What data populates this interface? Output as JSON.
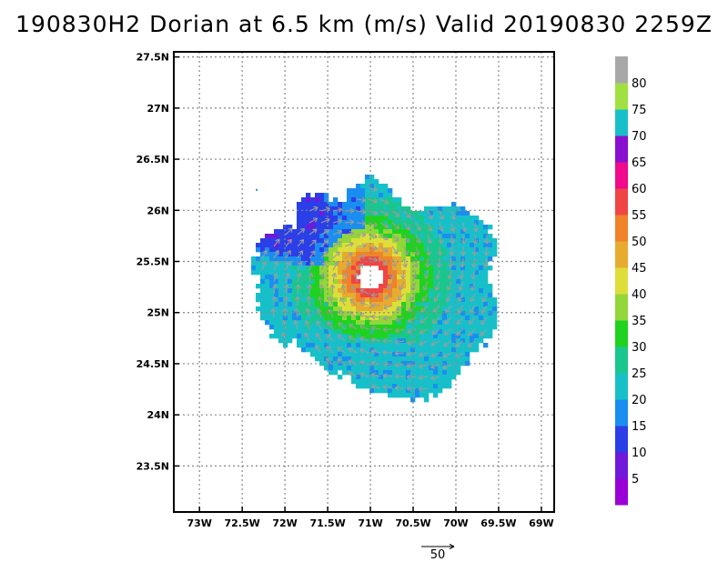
{
  "title": "190830H2 Dorian at 6.5 km (m/s) Valid 20190830  2259Z",
  "chart_data": {
    "type": "heatmap",
    "xlabel": "",
    "ylabel": "",
    "xlim": [
      -73.3,
      -68.85
    ],
    "ylim": [
      23.05,
      27.55
    ],
    "x_ticks": [
      -73,
      -72.5,
      -72,
      -71.5,
      -71,
      -70.5,
      -70,
      -69.5,
      -69
    ],
    "x_tick_labels": [
      "73W",
      "72.5W",
      "72W",
      "71.5W",
      "71W",
      "70.5W",
      "70W",
      "69.5W",
      "69W"
    ],
    "y_ticks": [
      23.5,
      24,
      24.5,
      25,
      25.5,
      26,
      26.5,
      27,
      27.5
    ],
    "y_tick_labels": [
      "23.5N",
      "24N",
      "24.5N",
      "25N",
      "25.5N",
      "26N",
      "26.5N",
      "27N",
      "27.5N"
    ],
    "grid": true,
    "center": {
      "lon": -71.0,
      "lat": 25.35
    },
    "colorbar": {
      "labels": [
        "5",
        "10",
        "15",
        "20",
        "25",
        "30",
        "35",
        "40",
        "45",
        "50",
        "55",
        "60",
        "65",
        "70",
        "75",
        "80"
      ],
      "colors": [
        "#9b00d7",
        "#6f1ad9",
        "#2a3fe8",
        "#1a8ef0",
        "#17c0c9",
        "#19c78e",
        "#1fd21f",
        "#92d63a",
        "#dede3a",
        "#e7ab2f",
        "#f0822a",
        "#f04545",
        "#f00a8c",
        "#8a10d0",
        "#17c0c9",
        "#a0e040",
        "#a8a8a8"
      ]
    },
    "reference_vector": {
      "label": "50",
      "value": 50
    }
  }
}
